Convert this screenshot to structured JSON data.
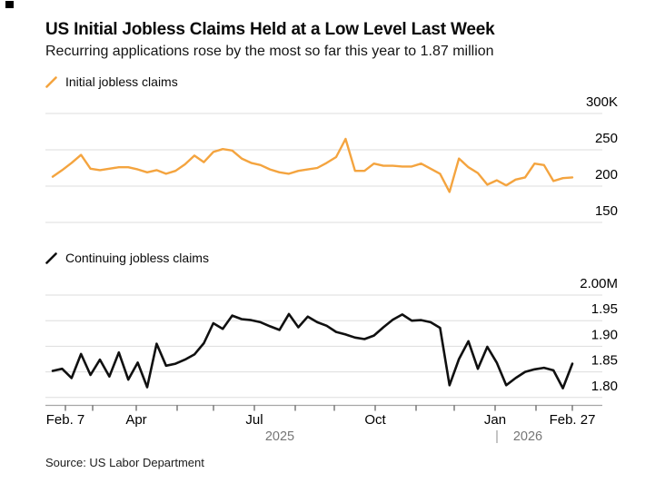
{
  "header": {
    "title": "US Initial Jobless Claims Held at a Low Level Last Week",
    "subtitle": "Recurring applications rose by the most so far this year to 1.87 million"
  },
  "source": {
    "text": "Source: US Labor Department"
  },
  "colors": {
    "initial_line": "#F4A43F",
    "continuing_line": "#101010",
    "grid": "#DDDDDD",
    "axis_line": "#A6A6A6",
    "tick": "#3A3A3A",
    "label_text": "#000000",
    "year_text": "#767676"
  },
  "x_axis": {
    "tick_labels": [
      "Feb. 7",
      "Apr",
      "Jul",
      "Oct",
      "Jan",
      "Feb. 27"
    ],
    "year_labels": [
      "2025",
      "2026"
    ],
    "range_start": "Feb. 7",
    "range_end": "Feb. 27",
    "frequency": "weekly, monthly ticks"
  },
  "chart_data": [
    {
      "type": "line",
      "series_name": "Initial jobless claims",
      "color": "#F4A43F",
      "unit": "thousands (K)",
      "ylim": [
        150,
        300
      ],
      "legend_position": "above chart, left",
      "grid": true,
      "y_ticks": [
        {
          "label": "300K",
          "value": 300
        },
        {
          "label": "250",
          "value": 250
        },
        {
          "label": "200",
          "value": 200
        },
        {
          "label": "150",
          "value": 150
        }
      ],
      "x_start_label": "Feb. 7",
      "x_end_label": "Feb. 27",
      "values": [
        213,
        222,
        232,
        243,
        224,
        222,
        224,
        226,
        226,
        223,
        219,
        222,
        217,
        221,
        230,
        242,
        233,
        247,
        251,
        249,
        238,
        232,
        229,
        223,
        219,
        217,
        221,
        223,
        225,
        232,
        240,
        265,
        221,
        221,
        231,
        228,
        228,
        227,
        227,
        231,
        224,
        217,
        192,
        238,
        226,
        218,
        202,
        208,
        201,
        209,
        212,
        231,
        229,
        207,
        211,
        212
      ]
    },
    {
      "type": "line",
      "series_name": "Continuing jobless claims",
      "color": "#101010",
      "unit": "millions (M)",
      "ylim": [
        1.8,
        2.0
      ],
      "legend_position": "above chart, left",
      "grid": true,
      "y_ticks": [
        {
          "label": "2.00M",
          "value": 2.0
        },
        {
          "label": "1.95",
          "value": 1.95
        },
        {
          "label": "1.90",
          "value": 1.9
        },
        {
          "label": "1.85",
          "value": 1.85
        },
        {
          "label": "1.80",
          "value": 1.8
        }
      ],
      "x_start_label": "Feb. 7",
      "x_end_label": "Feb. 27",
      "values": [
        1.852,
        1.856,
        1.838,
        1.885,
        1.844,
        1.874,
        1.841,
        1.888,
        1.835,
        1.868,
        1.82,
        1.905,
        1.862,
        1.866,
        1.874,
        1.884,
        1.906,
        1.945,
        1.934,
        1.96,
        1.953,
        1.951,
        1.947,
        1.939,
        1.932,
        1.963,
        1.937,
        1.958,
        1.947,
        1.94,
        1.928,
        1.923,
        1.917,
        1.914,
        1.921,
        1.937,
        1.952,
        1.962,
        1.95,
        1.951,
        1.947,
        1.936,
        1.824,
        1.875,
        1.91,
        1.856,
        1.899,
        1.868,
        1.824,
        1.838,
        1.85,
        1.855,
        1.858,
        1.853,
        1.818,
        1.866
      ]
    }
  ]
}
